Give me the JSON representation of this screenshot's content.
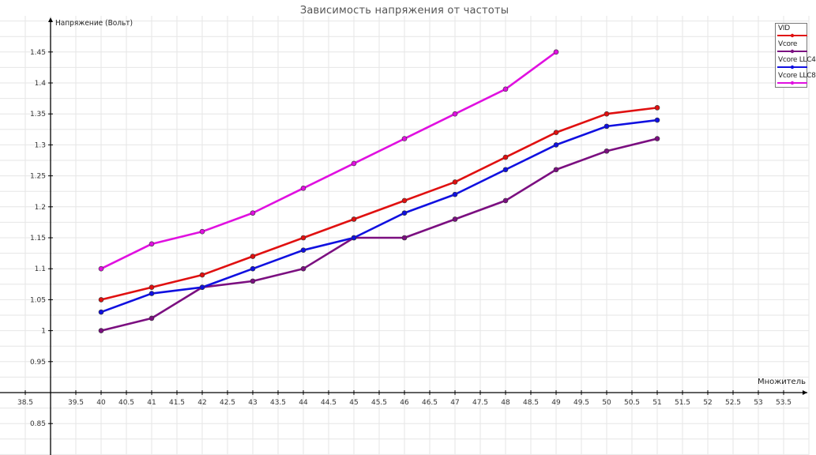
{
  "chart_data": {
    "type": "line",
    "title": "Зависимость напряжения от частоты",
    "xlabel": "Множитель",
    "ylabel": "Напряжение (Вольт)",
    "xlim": [
      38,
      54
    ],
    "ylim": [
      0.8,
      1.5
    ],
    "grid": true,
    "legend_position": "top-right",
    "x_ticks": [
      "38.5",
      "39.5",
      "40",
      "40.5",
      "41",
      "41.5",
      "42",
      "42.5",
      "43",
      "43.5",
      "44",
      "44.5",
      "45",
      "45.5",
      "46",
      "46.5",
      "47",
      "47.5",
      "48",
      "48.5",
      "49",
      "49.5",
      "50",
      "50.5",
      "51",
      "51.5",
      "52",
      "52.5",
      "53",
      "53.5"
    ],
    "y_ticks": [
      "0.85",
      "0.95",
      "1",
      "1.05",
      "1.1",
      "1.15",
      "1.2",
      "1.25",
      "1.3",
      "1.35",
      "1.4",
      "1.45"
    ],
    "series": [
      {
        "name": "VID",
        "color": "#e01010",
        "x": [
          40,
          41,
          42,
          43,
          44,
          45,
          46,
          47,
          48,
          49,
          50,
          51
        ],
        "values": [
          1.05,
          1.07,
          1.09,
          1.12,
          1.15,
          1.18,
          1.21,
          1.24,
          1.28,
          1.32,
          1.35,
          1.36
        ]
      },
      {
        "name": "Vcore",
        "color": "#7b0f80",
        "x": [
          40,
          41,
          42,
          43,
          44,
          45,
          46,
          47,
          48,
          49,
          50,
          51
        ],
        "values": [
          1.0,
          1.02,
          1.07,
          1.08,
          1.1,
          1.15,
          1.15,
          1.18,
          1.21,
          1.26,
          1.29,
          1.31
        ]
      },
      {
        "name": "Vcore LLC4",
        "color": "#1010e0",
        "x": [
          40,
          41,
          42,
          43,
          44,
          45,
          46,
          47,
          48,
          49,
          50,
          51
        ],
        "values": [
          1.03,
          1.06,
          1.07,
          1.1,
          1.13,
          1.15,
          1.19,
          1.22,
          1.26,
          1.3,
          1.33,
          1.34
        ]
      },
      {
        "name": "Vcore LLC8",
        "color": "#e010e0",
        "x": [
          40,
          41,
          42,
          43,
          44,
          45,
          46,
          47,
          48,
          49
        ],
        "values": [
          1.1,
          1.14,
          1.16,
          1.19,
          1.23,
          1.27,
          1.31,
          1.35,
          1.39,
          1.45
        ]
      }
    ]
  }
}
